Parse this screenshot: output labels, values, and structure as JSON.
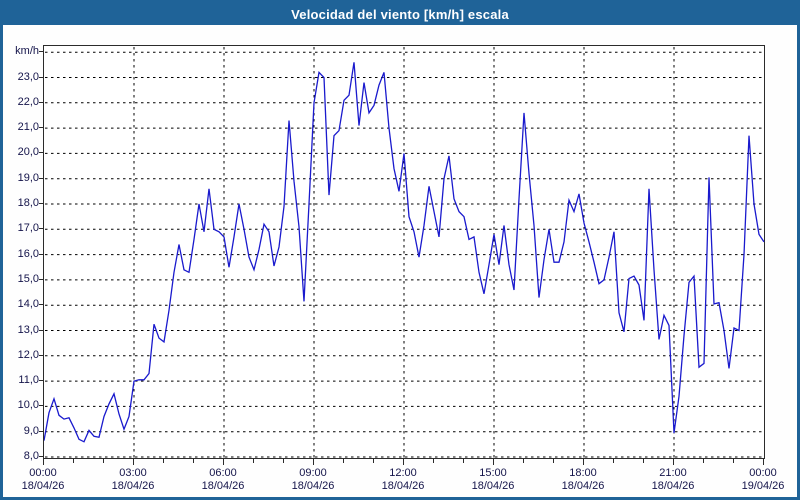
{
  "window": {
    "title": "Velocidad del viento [km/h] escala"
  },
  "colors": {
    "titlebar_bg": "#1F6398",
    "frame_border": "#1F6398",
    "title_text": "#FFFFFF",
    "line": "#1A1ACD",
    "grid": "#000000",
    "plot_border": "#2B2B2B",
    "label_text": "#14144A",
    "plot_bg": "#FFFFFF"
  },
  "y_axis": {
    "unit_label": "km/h",
    "min": 8,
    "max": 24,
    "tick_step": 1,
    "tick_labels": [
      "23,0",
      "22,0",
      "21,0",
      "20,0",
      "19,0",
      "18,0",
      "17,0",
      "16,0",
      "15,0",
      "14,0",
      "13,0",
      "12,0",
      "11,0",
      "10,0",
      "9,0",
      "8,0"
    ]
  },
  "x_axis": {
    "minor_tick_hours": 1,
    "major_tick_hours": 3,
    "major_ticks": [
      {
        "time": "00:00",
        "date": "18/04/26"
      },
      {
        "time": "03:00",
        "date": "18/04/26"
      },
      {
        "time": "06:00",
        "date": "18/04/26"
      },
      {
        "time": "09:00",
        "date": "18/04/26"
      },
      {
        "time": "12:00",
        "date": "18/04/26"
      },
      {
        "time": "15:00",
        "date": "18/04/26"
      },
      {
        "time": "18:00",
        "date": "18/04/26"
      },
      {
        "time": "21:00",
        "date": "18/04/26"
      },
      {
        "time": "00:00",
        "date": "19/04/26"
      }
    ]
  },
  "chart_data": {
    "type": "line",
    "title": "Velocidad del viento [km/h] escala",
    "xlabel": "",
    "ylabel": "km/h",
    "ylim": [
      8,
      24
    ],
    "grid": "dashed",
    "legend_position": "none",
    "x_start": "00:00 18/04/26",
    "x_end": "00:00 19/04/26",
    "x_step_minutes": 10,
    "x_span_hours": 24,
    "series": [
      {
        "name": "Velocidad del viento [km/h]",
        "values": [
          8.65,
          9.75,
          10.3,
          9.65,
          9.5,
          9.55,
          9.15,
          8.7,
          8.6,
          9.05,
          8.82,
          8.78,
          9.6,
          10.1,
          10.5,
          9.7,
          9.1,
          9.6,
          11.0,
          11.05,
          11.05,
          11.3,
          13.25,
          12.7,
          12.55,
          13.8,
          15.3,
          16.4,
          15.4,
          15.3,
          16.6,
          18.0,
          16.9,
          18.6,
          17.0,
          16.9,
          16.7,
          15.5,
          16.7,
          18.0,
          17.0,
          15.9,
          15.4,
          16.2,
          17.2,
          16.9,
          15.55,
          16.3,
          17.9,
          21.3,
          18.9,
          17.1,
          14.15,
          18.0,
          22.0,
          23.2,
          23.0,
          18.35,
          20.7,
          20.9,
          22.1,
          22.3,
          23.6,
          21.1,
          22.8,
          21.6,
          21.9,
          22.7,
          23.2,
          21.0,
          19.4,
          18.5,
          20.0,
          17.5,
          16.9,
          15.9,
          17.15,
          18.7,
          17.7,
          16.7,
          19.0,
          19.9,
          18.2,
          17.7,
          17.5,
          16.6,
          16.7,
          15.3,
          14.45,
          15.6,
          16.8,
          15.6,
          17.15,
          15.6,
          14.6,
          18.2,
          21.6,
          19.2,
          17.15,
          14.3,
          15.8,
          17.0,
          15.7,
          15.7,
          16.5,
          18.15,
          17.7,
          18.4,
          17.25,
          16.5,
          15.7,
          14.85,
          15.0,
          15.9,
          16.9,
          13.7,
          12.95,
          15.05,
          15.15,
          14.8,
          13.4,
          18.6,
          15.4,
          12.65,
          13.6,
          13.2,
          8.95,
          10.4,
          12.8,
          14.9,
          15.15,
          11.55,
          11.7,
          19.05,
          14.05,
          14.1,
          13.0,
          11.5,
          13.1,
          13.0,
          16.0,
          20.7,
          18.0,
          16.8,
          16.5
        ]
      }
    ]
  }
}
